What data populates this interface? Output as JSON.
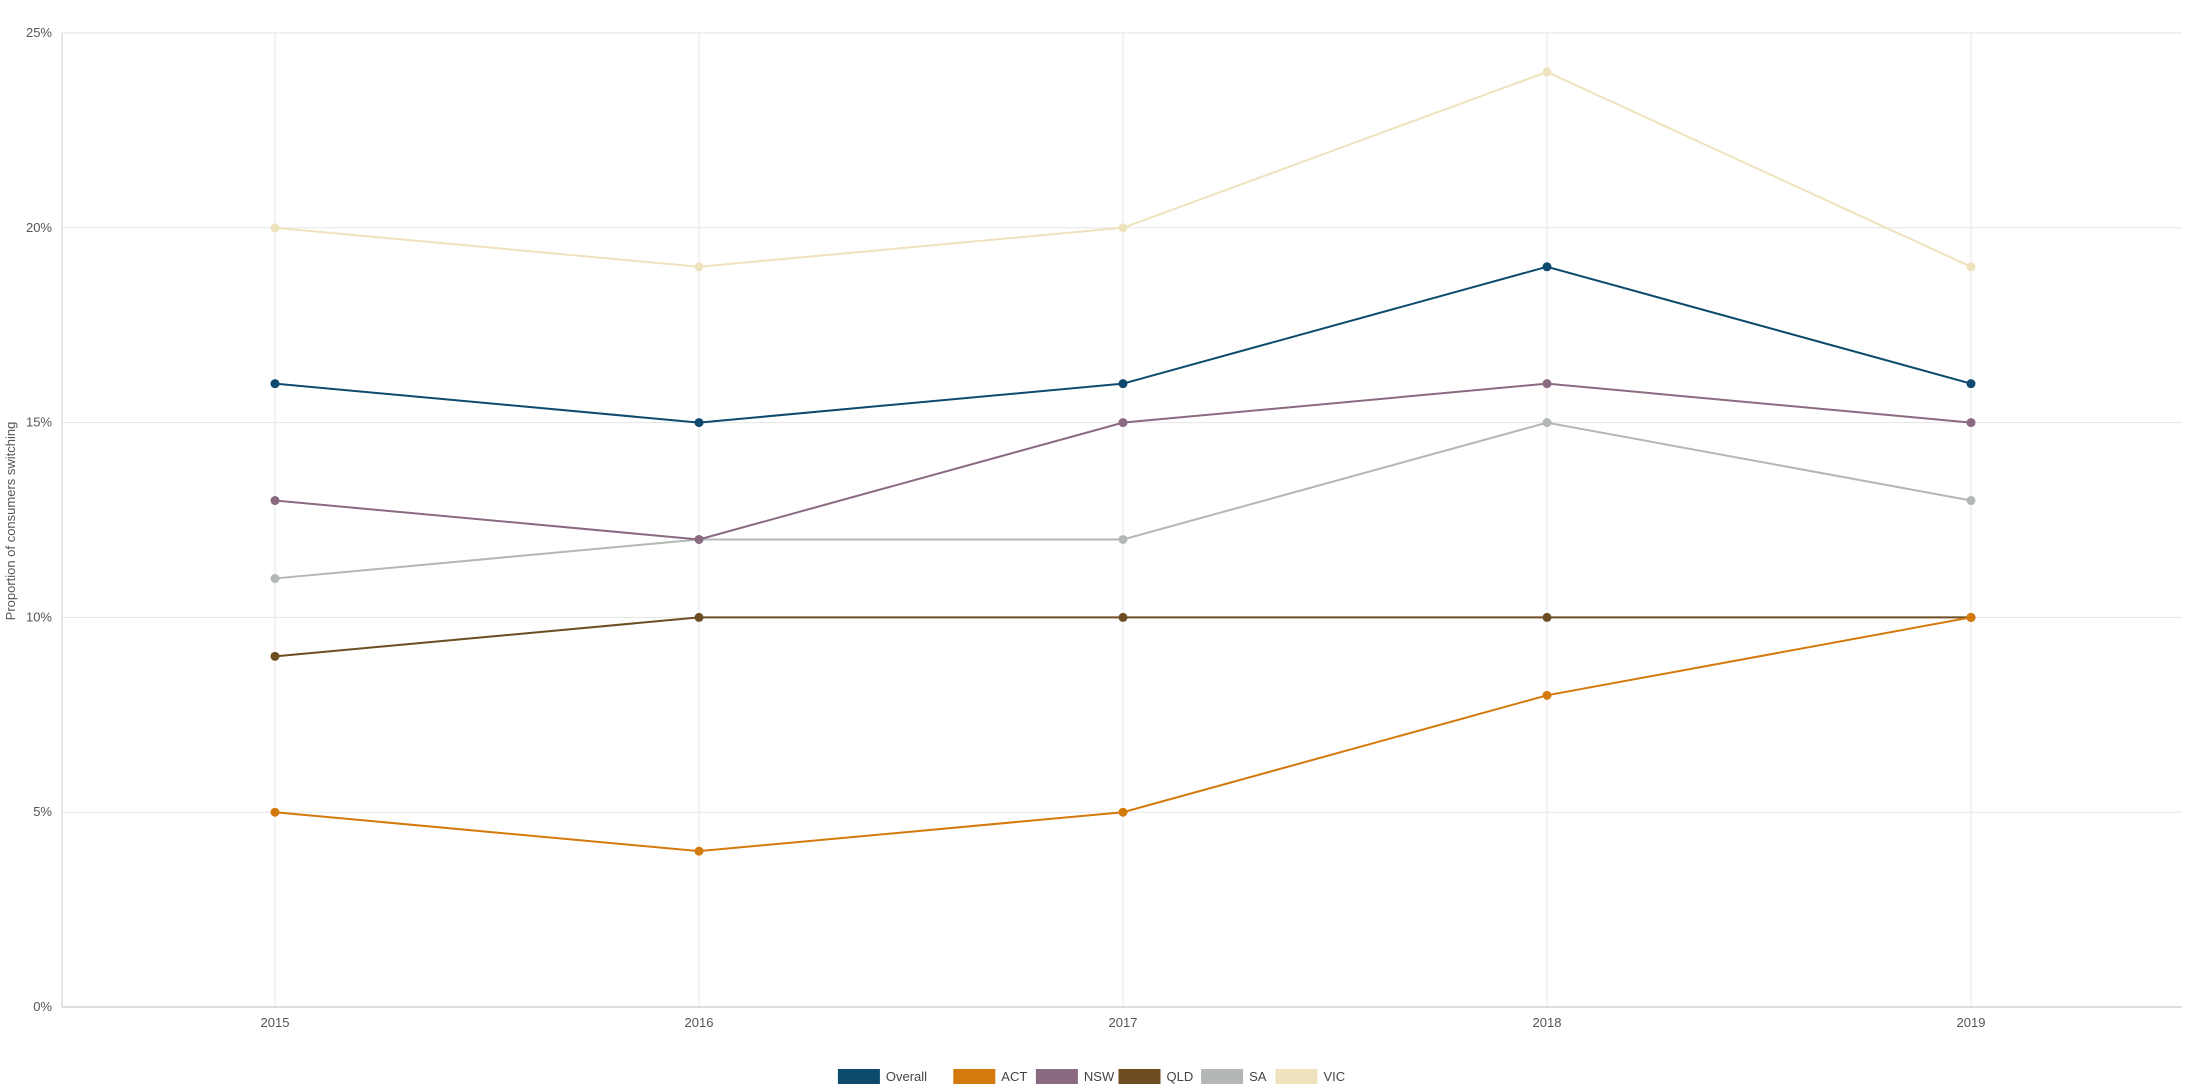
{
  "chart_data": {
    "type": "line",
    "title": "",
    "xlabel": "",
    "ylabel": "Proportion of consumers switching",
    "x": [
      "2015",
      "2016",
      "2017",
      "2018",
      "2019"
    ],
    "ylim": [
      0,
      25
    ],
    "y_ticks": [
      "0%",
      "5%",
      "10%",
      "15%",
      "20%",
      "25%"
    ],
    "grid": true,
    "legend_position": "bottom",
    "series": [
      {
        "name": "Overall",
        "color": "#0d4a6e",
        "values": [
          16,
          15,
          16,
          19,
          16
        ]
      },
      {
        "name": "ACT",
        "color": "#d47a0c",
        "values": [
          5,
          4,
          5,
          8,
          10
        ]
      },
      {
        "name": "NSW",
        "color": "#8a6a80",
        "values": [
          13,
          12,
          15,
          16,
          15
        ]
      },
      {
        "name": "QLD",
        "color": "#6e4d22",
        "values": [
          9,
          10,
          10,
          10,
          10
        ]
      },
      {
        "name": "SA",
        "color": "#b3b8b4",
        "values": [
          11,
          12,
          12,
          15,
          13
        ]
      },
      {
        "name": "VIC",
        "color": "#efe3bd",
        "values": [
          20,
          19,
          20,
          24,
          19
        ]
      }
    ]
  }
}
